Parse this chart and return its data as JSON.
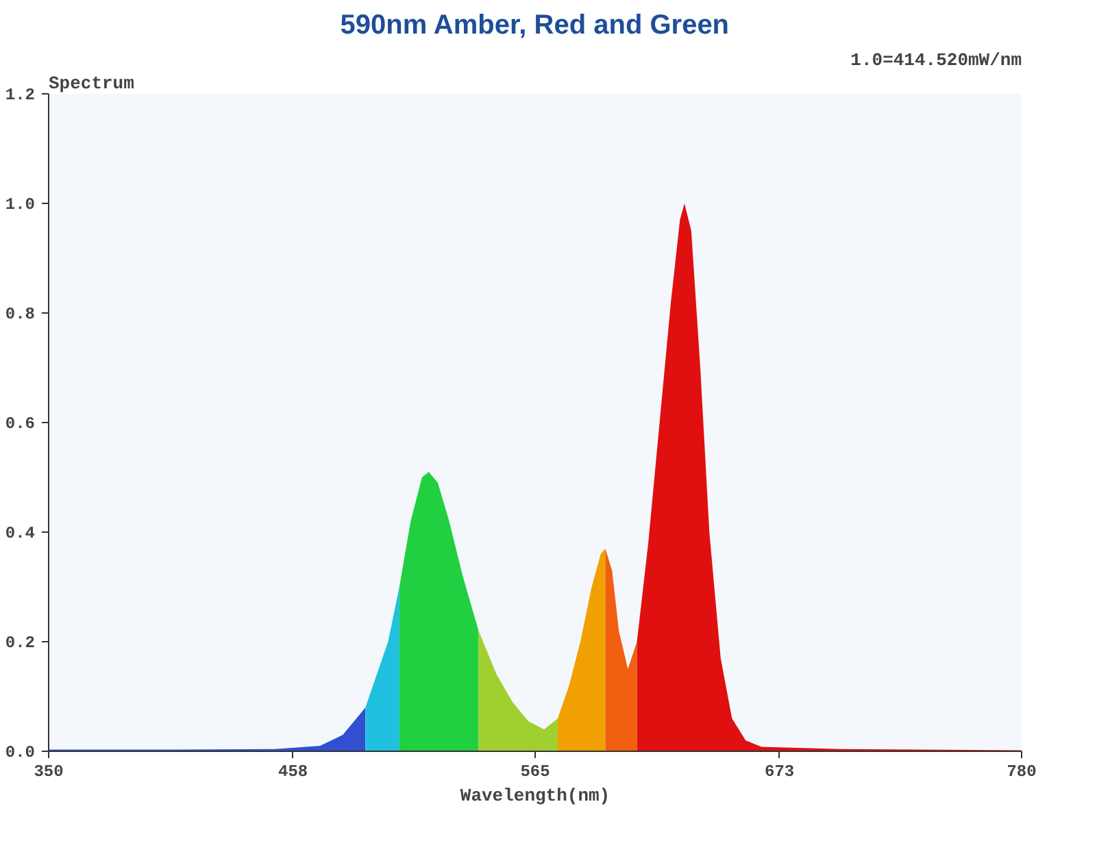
{
  "chart_data": {
    "type": "area",
    "title": "590nm Amber, Red and Green",
    "xlabel": "Wavelength(nm)",
    "ylabel": "Spectrum",
    "annotations": [
      "1.0=414.520mW/nm"
    ],
    "xlim": [
      350,
      780
    ],
    "xticks": [
      350,
      458,
      565,
      673,
      780
    ],
    "ylim": [
      0,
      1.2
    ],
    "yticks": [
      {
        "value": 0,
        "label": "0.0"
      },
      {
        "value": 0.2,
        "label": "0.2"
      },
      {
        "value": 0.4,
        "label": "0.4"
      },
      {
        "value": 0.6,
        "label": "0.6"
      },
      {
        "value": 0.8,
        "label": "0.8"
      },
      {
        "value": 1.0,
        "label": "1.0"
      },
      {
        "value": 1.2,
        "label": "1.2"
      }
    ],
    "grid": false,
    "series": [
      {
        "color": "#3050d0",
        "x": [
          350,
          400,
          450,
          470,
          480,
          490
        ],
        "values": [
          0.003,
          0.003,
          0.004,
          0.01,
          0.03,
          0.08
        ]
      },
      {
        "color": "#20c0e0",
        "x": [
          490,
          500,
          505
        ],
        "values": [
          0.08,
          0.2,
          0.3
        ]
      },
      {
        "color": "#20d040",
        "x": [
          505,
          510,
          515,
          518,
          522,
          527,
          533,
          540
        ],
        "values": [
          0.3,
          0.42,
          0.5,
          0.51,
          0.49,
          0.42,
          0.32,
          0.22
        ]
      },
      {
        "color": "#a0d030",
        "x": [
          540,
          548,
          555,
          562,
          569,
          575
        ],
        "values": [
          0.22,
          0.14,
          0.09,
          0.055,
          0.04,
          0.06
        ]
      },
      {
        "color": "#f0a000",
        "x": [
          575,
          580,
          585,
          590,
          594,
          596
        ],
        "values": [
          0.06,
          0.12,
          0.2,
          0.3,
          0.36,
          0.37
        ]
      },
      {
        "color": "#f06010",
        "x": [
          596,
          599,
          602,
          606,
          610
        ],
        "values": [
          0.37,
          0.33,
          0.22,
          0.15,
          0.2
        ]
      },
      {
        "color": "#e01010",
        "x": [
          610,
          615,
          620,
          625,
          629,
          631,
          634,
          638,
          642,
          647,
          652,
          658,
          665,
          700,
          780
        ],
        "values": [
          0.2,
          0.38,
          0.6,
          0.82,
          0.97,
          1.0,
          0.95,
          0.7,
          0.4,
          0.17,
          0.06,
          0.02,
          0.008,
          0.004,
          0.002
        ]
      }
    ]
  }
}
